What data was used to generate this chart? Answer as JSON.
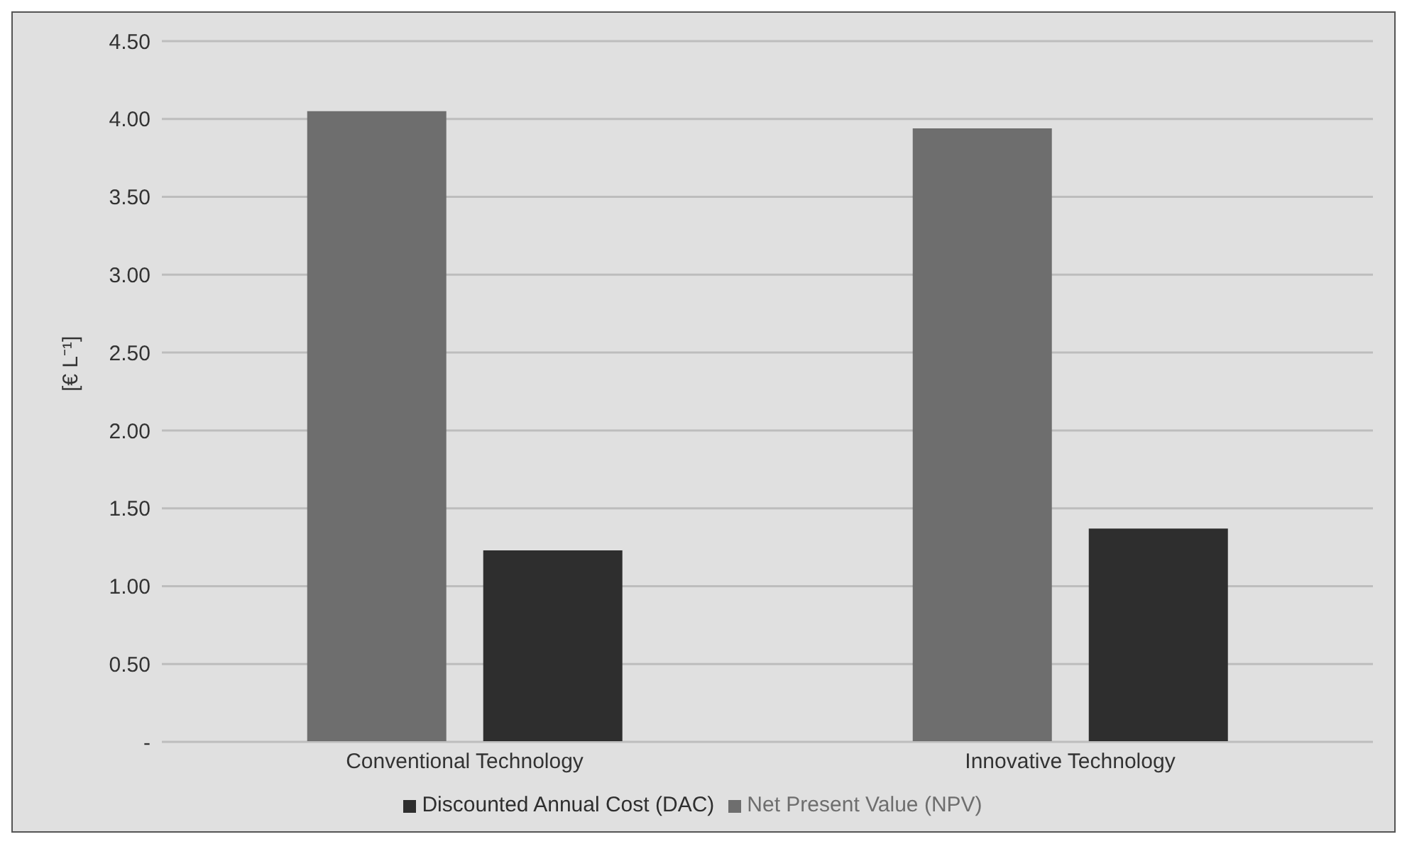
{
  "chart_data": {
    "type": "bar",
    "ylabel": "[€ L⁻¹]",
    "categories": [
      "Conventional Technology",
      "Innovative Technology"
    ],
    "series": [
      {
        "name": "Net Present Value (NPV)",
        "color": "#6e6e6e",
        "values": [
          4.05,
          3.94
        ]
      },
      {
        "name": "Discounted Annual Cost (DAC)",
        "color": "#2e2e2e",
        "values": [
          1.23,
          1.37
        ]
      }
    ],
    "ylim": [
      0,
      4.5
    ],
    "yticks": [
      {
        "value": 0,
        "label": "-"
      },
      {
        "value": 0.5,
        "label": "0.50"
      },
      {
        "value": 1,
        "label": "1.00"
      },
      {
        "value": 1.5,
        "label": "1.50"
      },
      {
        "value": 2,
        "label": "2.00"
      },
      {
        "value": 2.5,
        "label": "2.50"
      },
      {
        "value": 3,
        "label": "3.00"
      },
      {
        "value": 3.5,
        "label": "3.50"
      },
      {
        "value": 4,
        "label": "4.00"
      },
      {
        "value": 4.5,
        "label": "4.50"
      }
    ],
    "grid": "y",
    "legend": "bottom"
  }
}
